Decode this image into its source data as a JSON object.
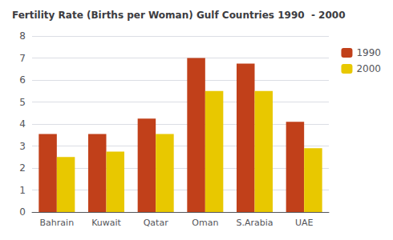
{
  "chart_data": {
    "type": "bar",
    "title": "Fertility Rate (Births per Woman) Gulf Countries 1990  - 2000",
    "categories": [
      "Bahrain",
      "Kuwait",
      "Qatar",
      "Oman",
      "S.Arabia",
      "UAE"
    ],
    "series": [
      {
        "name": "1990",
        "color": "#C1401A",
        "values": [
          3.55,
          3.55,
          4.25,
          7.0,
          6.75,
          4.1
        ]
      },
      {
        "name": "2000",
        "color": "#E8C800",
        "values": [
          2.5,
          2.75,
          3.55,
          5.5,
          5.5,
          2.9
        ]
      }
    ],
    "ylim": [
      0,
      8
    ],
    "yticks": [
      0,
      1,
      2,
      3,
      4,
      5,
      6,
      7,
      8
    ],
    "grid": true,
    "legend": "upper right"
  }
}
